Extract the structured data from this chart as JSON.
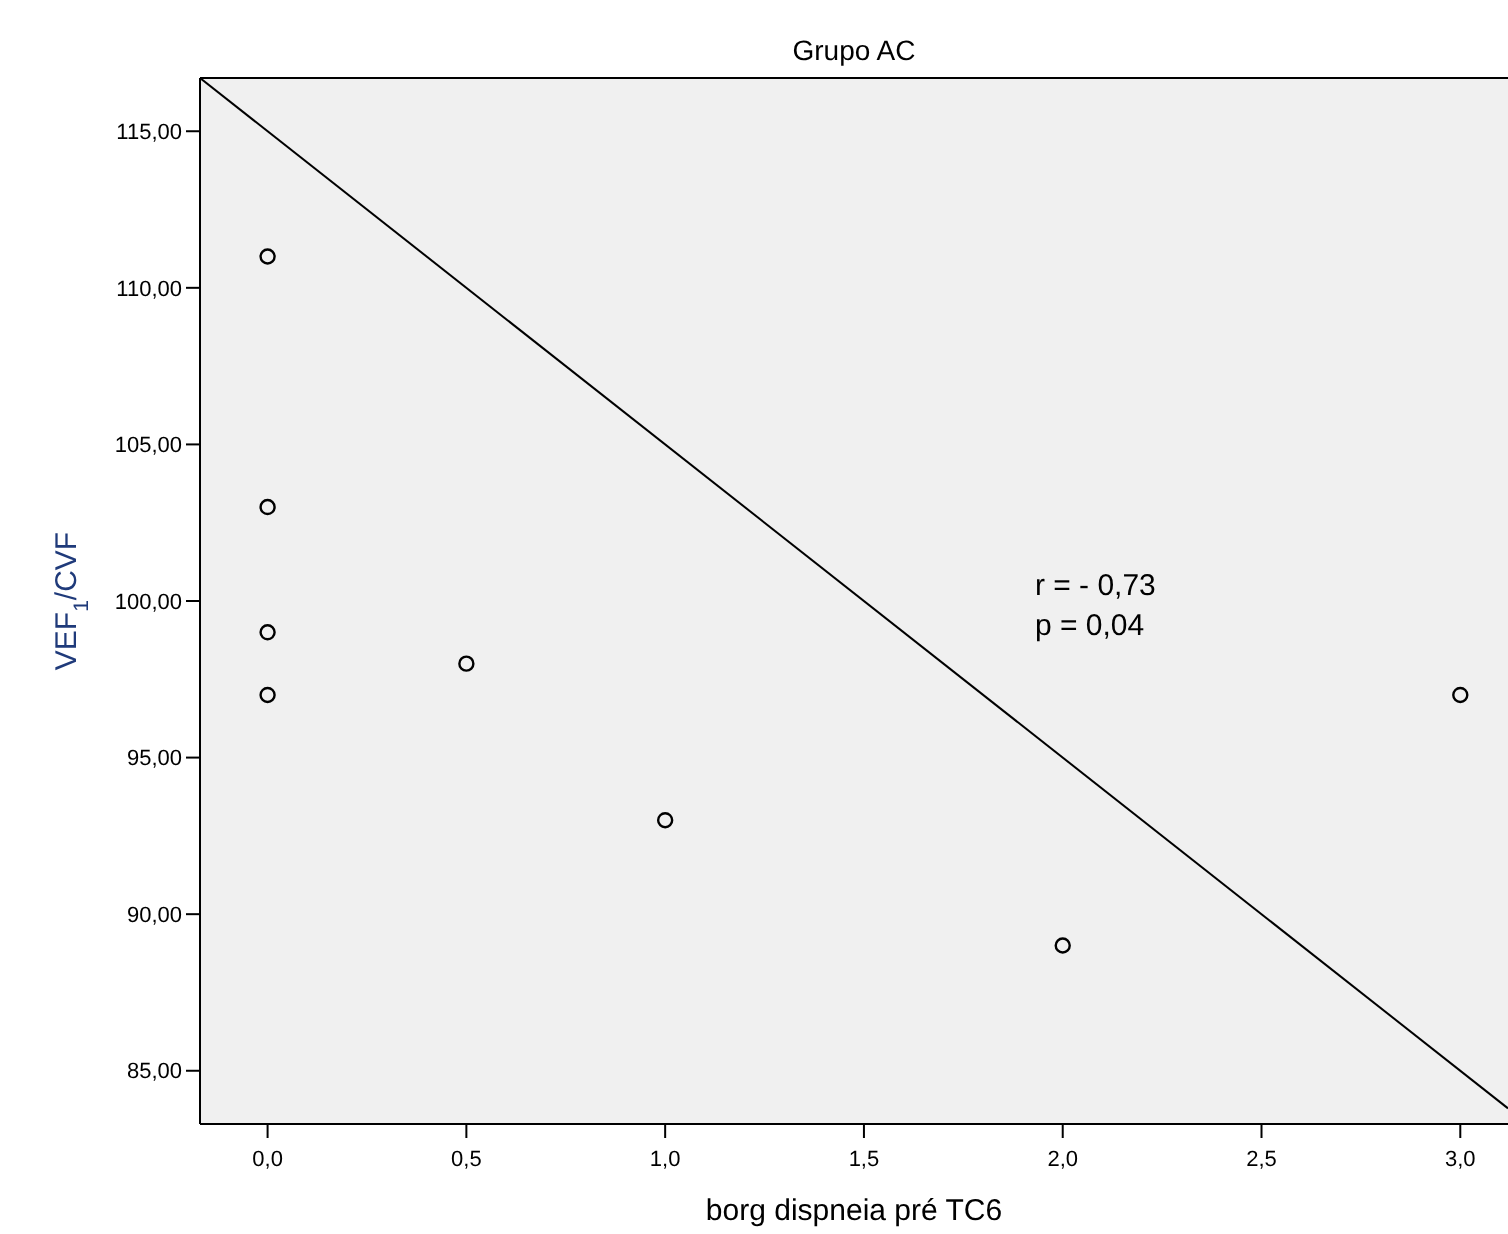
{
  "chart_data": {
    "type": "scatter",
    "title": "Grupo AC",
    "xlabel": "borg dispneia pré TC6",
    "ylabel": "VEF$_{1}$/CVF",
    "xlim": [
      -0.17,
      3.12
    ],
    "ylim": [
      83.3,
      116.7
    ],
    "xticks": [
      {
        "value": 0,
        "label": "0,0"
      },
      {
        "value": 0.5,
        "label": "0,5"
      },
      {
        "value": 1,
        "label": "1,0"
      },
      {
        "value": 1.5,
        "label": "1,5"
      },
      {
        "value": 2,
        "label": "2,0"
      },
      {
        "value": 2.5,
        "label": "2,5"
      },
      {
        "value": 3,
        "label": "3,0"
      }
    ],
    "yticks": [
      {
        "value": 85,
        "label": "85,00"
      },
      {
        "value": 90,
        "label": "90,00"
      },
      {
        "value": 95,
        "label": "95,00"
      },
      {
        "value": 100,
        "label": "100,00"
      },
      {
        "value": 105,
        "label": "105,00"
      },
      {
        "value": 110,
        "label": "110,00"
      },
      {
        "value": 115,
        "label": "115,00"
      }
    ],
    "series": [
      {
        "marker": "circle",
        "color": "#000000",
        "x": [
          0,
          0,
          0,
          0,
          0.5,
          1,
          2,
          3
        ],
        "values": [
          111,
          103,
          99,
          97,
          98,
          93,
          89,
          97
        ]
      },
      {
        "type": "line",
        "color": "#000000",
        "x": [
          -0.17,
          3.12
        ],
        "values": [
          116.7,
          83.8
        ]
      }
    ],
    "annotations": [
      "r = - 0,73",
      "p = 0,04"
    ]
  }
}
